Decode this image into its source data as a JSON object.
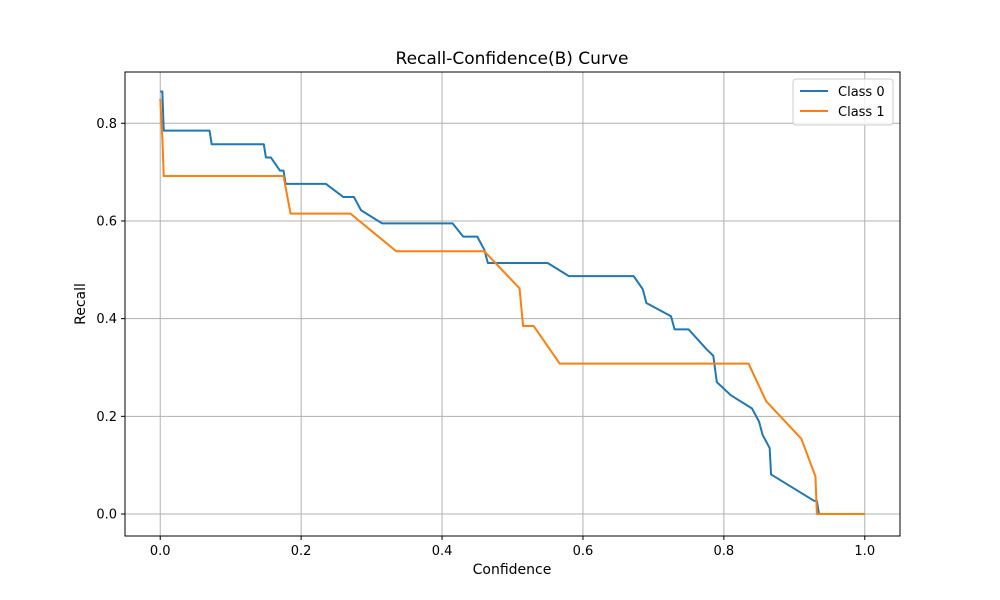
{
  "chart_data": {
    "type": "line",
    "title": "Recall-Confidence(B) Curve",
    "xlabel": "Confidence",
    "ylabel": "Recall",
    "xlim": [
      -0.05,
      1.05
    ],
    "ylim": [
      -0.045,
      0.905
    ],
    "xticks": [
      "0.0",
      "0.2",
      "0.4",
      "0.6",
      "0.8",
      "1.0"
    ],
    "xtick_values": [
      0.0,
      0.2,
      0.4,
      0.6,
      0.8,
      1.0
    ],
    "yticks": [
      "0.0",
      "0.2",
      "0.4",
      "0.6",
      "0.8"
    ],
    "ytick_values": [
      0.0,
      0.2,
      0.4,
      0.6,
      0.8
    ],
    "grid": true,
    "legend_position": "top-right",
    "series": [
      {
        "name": "Class 0",
        "color": "#1f77b4",
        "x": [
          0.0,
          0.003,
          0.005,
          0.07,
          0.073,
          0.147,
          0.15,
          0.157,
          0.17,
          0.175,
          0.178,
          0.235,
          0.26,
          0.275,
          0.285,
          0.315,
          0.415,
          0.43,
          0.45,
          0.46,
          0.465,
          0.55,
          0.58,
          0.672,
          0.685,
          0.69,
          0.725,
          0.73,
          0.75,
          0.775,
          0.785,
          0.79,
          0.81,
          0.84,
          0.85,
          0.855,
          0.865,
          0.867,
          0.928,
          0.932,
          0.935,
          1.0
        ],
        "y": [
          0.865,
          0.865,
          0.785,
          0.785,
          0.757,
          0.757,
          0.73,
          0.73,
          0.703,
          0.703,
          0.676,
          0.676,
          0.649,
          0.649,
          0.622,
          0.595,
          0.595,
          0.568,
          0.568,
          0.541,
          0.514,
          0.514,
          0.487,
          0.487,
          0.46,
          0.432,
          0.405,
          0.378,
          0.378,
          0.338,
          0.324,
          0.27,
          0.243,
          0.216,
          0.189,
          0.162,
          0.135,
          0.081,
          0.027,
          0.027,
          0.0,
          0.0
        ]
      },
      {
        "name": "Class 1",
        "color": "#ff7f0e",
        "x": [
          0.0,
          0.003,
          0.005,
          0.175,
          0.185,
          0.27,
          0.335,
          0.46,
          0.51,
          0.515,
          0.53,
          0.567,
          0.835,
          0.86,
          0.91,
          0.93,
          0.932,
          1.0
        ],
        "y": [
          0.85,
          0.77,
          0.692,
          0.692,
          0.615,
          0.615,
          0.538,
          0.538,
          0.462,
          0.385,
          0.385,
          0.308,
          0.308,
          0.231,
          0.154,
          0.077,
          0.0,
          0.0
        ]
      }
    ]
  }
}
